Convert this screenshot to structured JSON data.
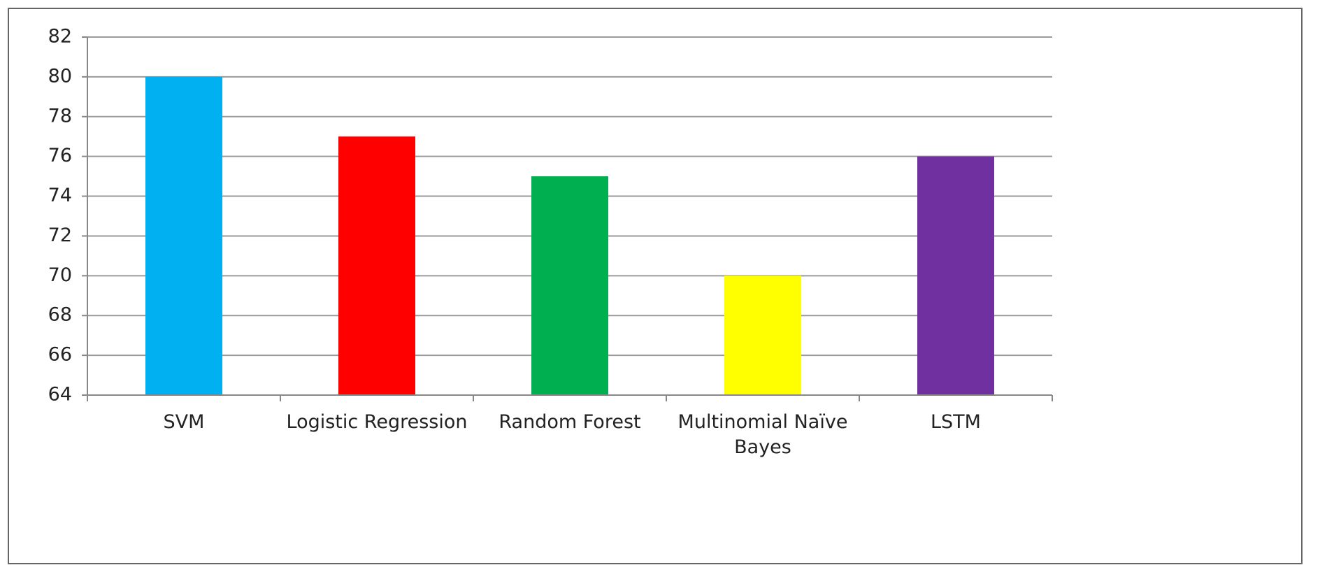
{
  "chart_data": {
    "type": "bar",
    "categories": [
      "SVM",
      "Logistic Regression",
      "Random Forest",
      "Multinomial Naïve Bayes",
      "LSTM"
    ],
    "values": [
      80,
      77,
      75,
      70,
      76
    ],
    "colors": [
      "#00b0f0",
      "#ff0000",
      "#00b050",
      "#ffff00",
      "#7030a0"
    ],
    "ylim": [
      64,
      82
    ],
    "yticks": [
      64,
      66,
      68,
      70,
      72,
      74,
      76,
      78,
      80,
      82
    ],
    "grid": true
  }
}
